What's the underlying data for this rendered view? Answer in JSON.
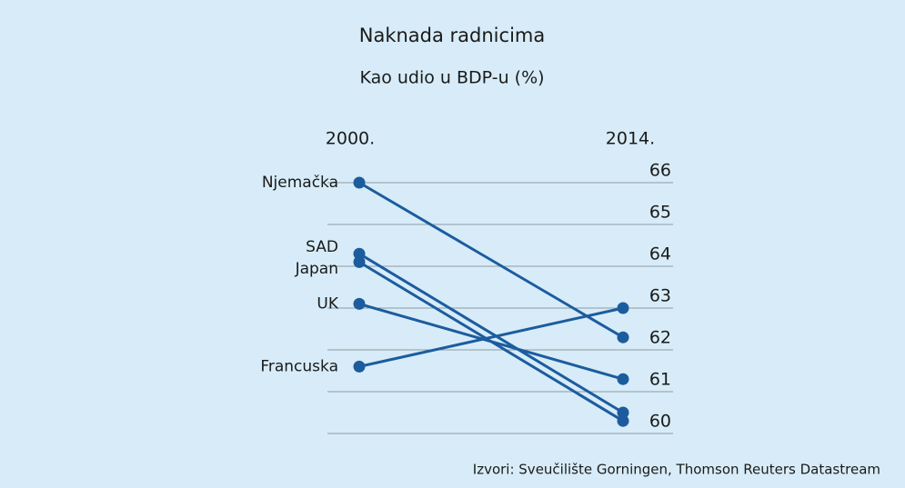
{
  "chart_data": {
    "type": "slope",
    "title": "Naknada radnicima",
    "subtitle": "Kao udio u BDP-u (%)",
    "categories": [
      "2000.",
      "2014."
    ],
    "series": [
      {
        "name": "Njemačka",
        "color": "#1c5c9e",
        "values": [
          66.0,
          62.3
        ]
      },
      {
        "name": "SAD",
        "color": "#1c5c9e",
        "values": [
          64.3,
          60.5
        ]
      },
      {
        "name": "Japan",
        "color": "#1c5c9e",
        "values": [
          64.1,
          60.3
        ]
      },
      {
        "name": "UK",
        "color": "#1c5c9e",
        "values": [
          63.1,
          61.3
        ]
      },
      {
        "name": "Francuska",
        "color": "#1c5c9e",
        "values": [
          61.6,
          63.0
        ]
      }
    ],
    "ylim": [
      60,
      66
    ],
    "yticks": [
      60,
      61,
      62,
      63,
      64,
      65,
      66
    ],
    "grid": true,
    "source": "Izvori: Sveučilište Gorningen, Thomson Reuters Datastream"
  }
}
